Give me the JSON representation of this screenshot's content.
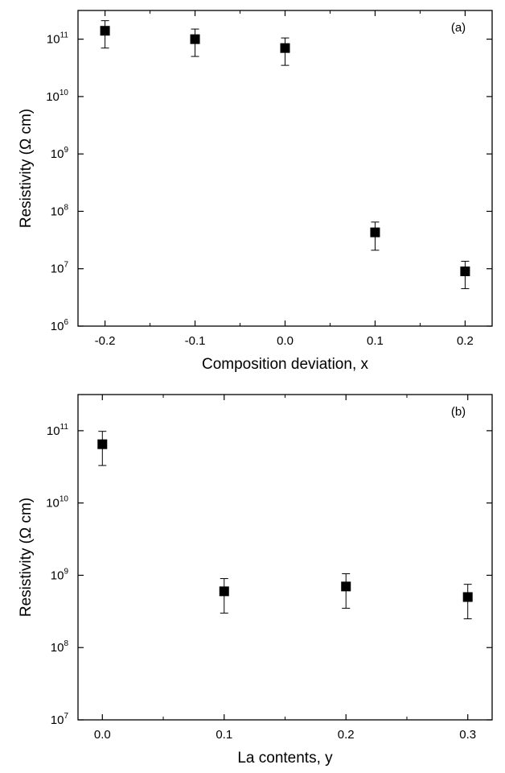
{
  "chart_data": [
    {
      "type": "scatter",
      "panel_label": "(a)",
      "xlabel": "Composition deviation, x",
      "ylabel": "Resistivity (Ω cm)",
      "xlim": [
        -0.23,
        0.23
      ],
      "ylim_log10": [
        6,
        11.5
      ],
      "yscale": "log",
      "xticks": [
        -0.2,
        -0.1,
        0.0,
        0.1,
        0.2
      ],
      "xtick_labels": [
        "-0.2",
        "-0.1",
        "0.0",
        "0.1",
        "0.2"
      ],
      "ytick_exponents": [
        6,
        7,
        8,
        9,
        10,
        11
      ],
      "marker": "filled-square",
      "points": [
        {
          "x": -0.2,
          "y": 140000000000.0,
          "err_low": 70000000000.0,
          "err_high": 210000000000.0
        },
        {
          "x": -0.1,
          "y": 100000000000.0,
          "err_low": 50000000000.0,
          "err_high": 150000000000.0
        },
        {
          "x": 0.0,
          "y": 70000000000.0,
          "err_low": 35000000000.0,
          "err_high": 105000000000.0
        },
        {
          "x": 0.1,
          "y": 43000000.0,
          "err_low": 21000000.0,
          "err_high": 65000000.0
        },
        {
          "x": 0.2,
          "y": 9000000.0,
          "err_low": 4500000.0,
          "err_high": 13500000.0
        }
      ]
    },
    {
      "type": "scatter",
      "panel_label": "(b)",
      "xlabel": "La contents, y",
      "ylabel": "Resistivity (Ω cm)",
      "xlim": [
        -0.02,
        0.32
      ],
      "ylim_log10": [
        7,
        11.5
      ],
      "yscale": "log",
      "xticks": [
        0.0,
        0.1,
        0.2,
        0.3
      ],
      "xtick_labels": [
        "0.0",
        "0.1",
        "0.2",
        "0.3"
      ],
      "ytick_exponents": [
        7,
        8,
        9,
        10,
        11
      ],
      "marker": "filled-square",
      "points": [
        {
          "x": 0.0,
          "y": 65000000000.0,
          "err_low": 33000000000.0,
          "err_high": 98000000000.0
        },
        {
          "x": 0.1,
          "y": 600000000.0,
          "err_low": 300000000.0,
          "err_high": 900000000.0
        },
        {
          "x": 0.2,
          "y": 700000000.0,
          "err_low": 350000000.0,
          "err_high": 1050000000.0
        },
        {
          "x": 0.3,
          "y": 500000000.0,
          "err_low": 250000000.0,
          "err_high": 750000000.0
        }
      ]
    }
  ]
}
